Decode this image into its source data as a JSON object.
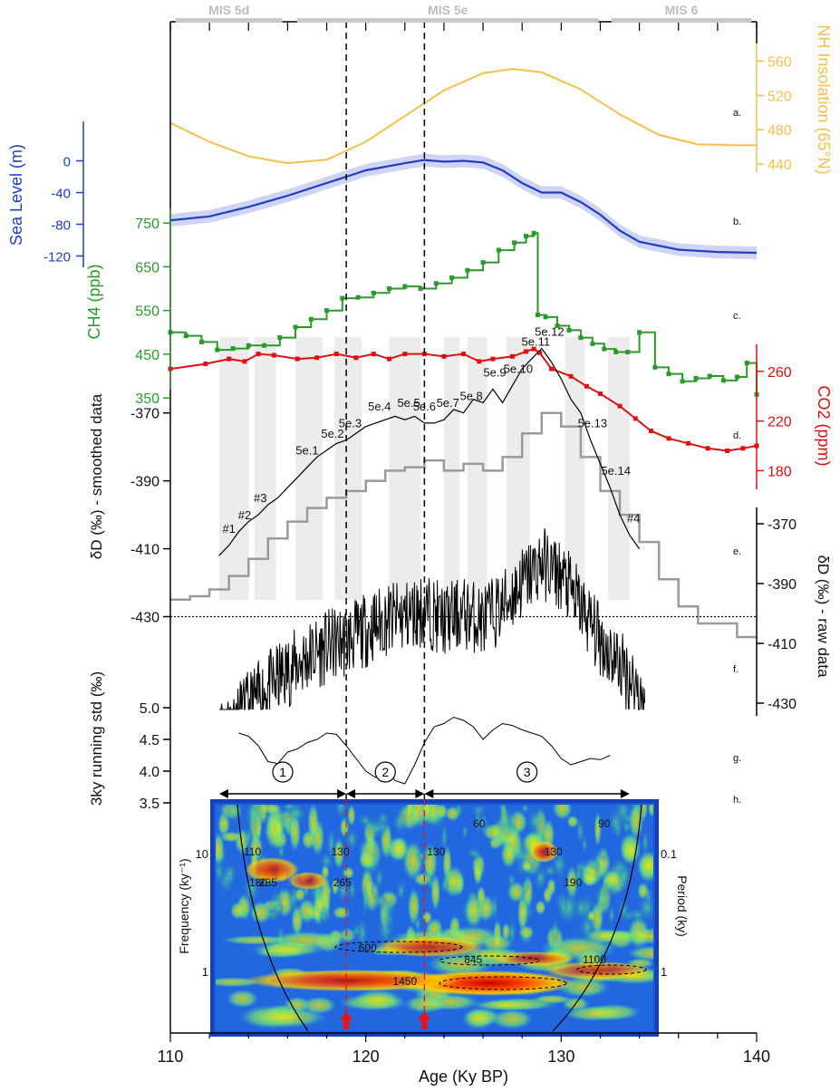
{
  "chart_data": {
    "type": "line",
    "xlabel": "Age (Ky BP)",
    "xlim": [
      110,
      140
    ],
    "xticks": [
      "110",
      "120",
      "130",
      "140"
    ],
    "mis_stages": [
      {
        "label": "MIS 5d",
        "start": 110,
        "end": 116
      },
      {
        "label": "MIS 5e",
        "start": 116.2,
        "end": 132.2
      },
      {
        "label": "MIS 6",
        "start": 132.3,
        "end": 140
      }
    ],
    "vertical_markers": [
      119,
      123
    ],
    "panel_labels": [
      "a.",
      "b.",
      "c.",
      "d.",
      "e.",
      "f.",
      "g.",
      "h."
    ],
    "insolation": {
      "name": "NH Insolation (65°N)",
      "ylim": [
        420,
        570
      ],
      "ticks": [
        "440",
        "480",
        "520",
        "560"
      ],
      "color": "#f5c04a",
      "x": [
        110,
        112,
        114,
        116,
        118,
        120,
        122,
        124,
        126,
        127.5,
        129,
        131,
        133,
        135,
        137,
        139,
        140
      ],
      "y": [
        488,
        466,
        449,
        441,
        445,
        466,
        496,
        526,
        546,
        551,
        547,
        527,
        498,
        474,
        463,
        462,
        462
      ]
    },
    "sea_level": {
      "name": "Sea Level (m)",
      "ylim": [
        -140,
        20
      ],
      "ticks": [
        "0",
        "-40",
        "-80",
        "-120"
      ],
      "color": "#1f3fbf",
      "x": [
        110,
        112,
        114,
        116,
        118,
        120,
        122,
        123,
        124,
        125,
        126,
        127,
        128,
        129,
        130,
        131,
        132,
        133,
        134,
        136,
        138,
        140
      ],
      "y": [
        -75,
        -70,
        -58,
        -44,
        -28,
        -12,
        -3,
        1,
        -1,
        0,
        -2,
        -12,
        -28,
        -40,
        -40,
        -52,
        -68,
        -88,
        -102,
        -112,
        -115,
        -116
      ]
    },
    "ch4": {
      "name": "CH4 (ppb)",
      "ylim": [
        340,
        800
      ],
      "ticks": [
        "750",
        "650",
        "550",
        "450",
        "350"
      ],
      "color": "#2a9a2a",
      "x": [
        110,
        110.8,
        111.6,
        112.4,
        113.2,
        114,
        114.8,
        115.6,
        116.4,
        117.2,
        118,
        118.8,
        119.6,
        120.4,
        121.2,
        122,
        122.8,
        123.6,
        124.4,
        125.2,
        126,
        126.8,
        127.6,
        128.2,
        128.6,
        128.8,
        129.2,
        129.8,
        130.4,
        131,
        131.6,
        132.2,
        132.8,
        133.4,
        134,
        134.8,
        135.5,
        136.2,
        136.9,
        137.6,
        138.3,
        139,
        139.5,
        140
      ],
      "y": [
        500,
        492,
        478,
        460,
        463,
        470,
        470,
        488,
        512,
        530,
        550,
        578,
        580,
        590,
        600,
        605,
        600,
        612,
        625,
        642,
        660,
        688,
        705,
        720,
        727,
        540,
        535,
        515,
        505,
        488,
        474,
        462,
        455,
        455,
        500,
        420,
        405,
        388,
        395,
        400,
        390,
        398,
        430,
        358
      ]
    },
    "co2": {
      "name": "CO2 (ppm)",
      "ylim": [
        165,
        300
      ],
      "ticks": [
        "260",
        "220",
        "180"
      ],
      "color": "#e01010",
      "x": [
        110,
        111.8,
        113,
        113.8,
        114.5,
        115.3,
        116.5,
        117.5,
        118.5,
        119.5,
        120.4,
        121.2,
        122,
        123,
        124,
        125,
        125.8,
        126.5,
        127.5,
        128.2,
        128.6,
        128.9,
        129.5,
        130.5,
        131.3,
        132,
        133,
        133.8,
        134.6,
        135.5,
        136.5,
        137.5,
        138.5,
        139.3,
        140
      ],
      "y": [
        262,
        266,
        270,
        268,
        274,
        273,
        270,
        271,
        274,
        271,
        274,
        270,
        274,
        274,
        272,
        274,
        268,
        270,
        272,
        276,
        278,
        275,
        262,
        256,
        248,
        242,
        232,
        222,
        212,
        206,
        202,
        198,
        196,
        198,
        200
      ]
    },
    "dD_smoothed": {
      "name": "δD (‰) - smoothed data",
      "ylim": [
        -440,
        -345
      ],
      "ticks": [
        "-370",
        "-390",
        "-410",
        "-430"
      ],
      "color": "#000000",
      "x": [
        112.5,
        113,
        113.5,
        114,
        114.5,
        115,
        115.5,
        116,
        116.5,
        117,
        117.5,
        118,
        118.5,
        119,
        119.5,
        120,
        120.5,
        121,
        121.5,
        122,
        122.5,
        123,
        123.5,
        124,
        124.5,
        125,
        125.5,
        126,
        126.5,
        127,
        127.5,
        128,
        128.5,
        129,
        129.5,
        130,
        130.5,
        131,
        131.5,
        132,
        132.5,
        133,
        133.5,
        134
      ],
      "y": [
        -412,
        -409,
        -405,
        -402,
        -400,
        -397,
        -395,
        -392,
        -389,
        -386,
        -383,
        -381,
        -379,
        -378,
        -376,
        -374,
        -373,
        -372,
        -371,
        -372,
        -371,
        -373,
        -373,
        -372,
        -369,
        -370,
        -366,
        -367,
        -363,
        -367,
        -362,
        -357,
        -354,
        -351,
        -355,
        -360,
        -366,
        -370,
        -378,
        -385,
        -392,
        -400,
        -406,
        -410
      ]
    },
    "dD_smoothed_grey": {
      "color": "#9a9a9a",
      "x": [
        110,
        111,
        112,
        113,
        114,
        115,
        116,
        117,
        118,
        119,
        120,
        121,
        122,
        123,
        124,
        125,
        126,
        127,
        128,
        129,
        130,
        131,
        132,
        133,
        134,
        135,
        136,
        137,
        138,
        139,
        140
      ],
      "y": [
        -425,
        -424,
        -422,
        -418,
        -413,
        -407,
        -402,
        -398,
        -395,
        -393,
        -390,
        -387,
        -386,
        -384,
        -387,
        -385,
        -387,
        -383,
        -376,
        -370,
        -374,
        -383,
        -393,
        -400,
        -408,
        -419,
        -427,
        -432,
        -432,
        -436,
        -436
      ]
    },
    "dD_raw_axis": {
      "name": "δD (‰) - raw data",
      "ticks": [
        "-370",
        "-390",
        "-410",
        "-430"
      ]
    },
    "threshold_line": -430,
    "events": [
      {
        "label": "#1",
        "x": 113.0
      },
      {
        "label": "#2",
        "x": 113.8
      },
      {
        "label": "#3",
        "x": 114.6
      },
      {
        "label": "5e.1",
        "x": 117.0
      },
      {
        "label": "5e.2",
        "x": 118.3
      },
      {
        "label": "5e.3",
        "x": 119.2
      },
      {
        "label": "5e.4",
        "x": 120.7
      },
      {
        "label": "5e.5",
        "x": 122.2
      },
      {
        "label": "5e.6",
        "x": 123.0
      },
      {
        "label": "5e.7",
        "x": 124.2
      },
      {
        "label": "5e.8",
        "x": 125.4
      },
      {
        "label": "5e.9",
        "x": 126.6
      },
      {
        "label": "5e.10",
        "x": 127.8
      },
      {
        "label": "5e.11",
        "x": 128.7
      },
      {
        "label": "5e.12",
        "x": 129.4
      },
      {
        "label": "5e.13",
        "x": 131.6
      },
      {
        "label": "5e.14",
        "x": 132.8
      },
      {
        "label": "#4",
        "x": 133.7
      }
    ],
    "running_std": {
      "name": "3ky running std (‰)",
      "ylim": [
        3.5,
        5.3
      ],
      "ticks": [
        "5.0",
        "4.5",
        "4.0",
        "3.5"
      ],
      "color": "#000000",
      "x": [
        113.5,
        114,
        114.5,
        115,
        115.5,
        116,
        116.5,
        117,
        117.5,
        118,
        118.5,
        119,
        119.5,
        120,
        120.5,
        121,
        121.5,
        122,
        122.5,
        123,
        123.5,
        124,
        124.5,
        125,
        125.5,
        126,
        126.5,
        127,
        127.5,
        128,
        128.5,
        129,
        129.5,
        130,
        130.5,
        131,
        131.5,
        132,
        132.5
      ],
      "y": [
        4.6,
        4.55,
        4.4,
        4.15,
        4.12,
        4.3,
        4.35,
        4.45,
        4.5,
        4.6,
        4.58,
        4.4,
        4.2,
        4.0,
        3.9,
        4.05,
        3.85,
        3.8,
        4.1,
        4.45,
        4.7,
        4.75,
        4.85,
        4.8,
        4.7,
        4.5,
        4.65,
        4.75,
        4.72,
        4.65,
        4.6,
        4.55,
        4.4,
        4.2,
        4.1,
        4.15,
        4.2,
        4.18,
        4.25
      ]
    },
    "intervals": [
      {
        "label": "1",
        "start": 112.5,
        "end": 119
      },
      {
        "label": "2",
        "start": 119,
        "end": 123
      },
      {
        "label": "3",
        "start": 123,
        "end": 133.5
      }
    ],
    "wavelet": {
      "ylabel": "Frequency  (ky⁻¹)",
      "ylabel_right": "Period  (ky)",
      "freq_ticks": [
        "10",
        "1"
      ],
      "period_ticks": [
        "0.1",
        "1"
      ],
      "periods": [
        {
          "label": "110",
          "x": 114.2,
          "band": "high"
        },
        {
          "label": "130",
          "x": 118.7,
          "band": "high"
        },
        {
          "label": "180",
          "x": 114.5,
          "band": "mid"
        },
        {
          "label": "285",
          "x": 115.0,
          "band": "mid"
        },
        {
          "label": "265",
          "x": 118.8,
          "band": "mid"
        },
        {
          "label": "130",
          "x": 123.6,
          "band": "high"
        },
        {
          "label": "60",
          "x": 125.8,
          "band": "top"
        },
        {
          "label": "130",
          "x": 129.6,
          "band": "high"
        },
        {
          "label": "190",
          "x": 130.6,
          "band": "mid"
        },
        {
          "label": "90",
          "x": 132.2,
          "band": "top"
        },
        {
          "label": "600",
          "x": 120.1,
          "band": "low"
        },
        {
          "label": "845",
          "x": 125.5,
          "band": "low2"
        },
        {
          "label": "1100",
          "x": 131.7,
          "band": "low2"
        },
        {
          "label": "1450",
          "x": 122.0,
          "band": "bottom"
        }
      ]
    }
  }
}
